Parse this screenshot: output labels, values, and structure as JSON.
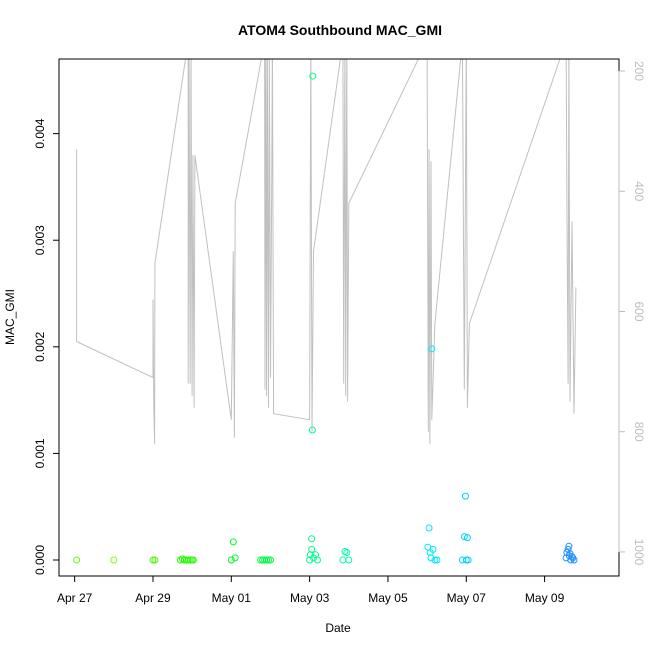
{
  "chart_data": {
    "type": "scatter",
    "title": "ATOM4 Southbound MAC_GMI",
    "xlabel": "Date",
    "ylabel": "MAC_GMI",
    "x_ticks": [
      "Apr 27",
      "Apr 29",
      "May 01",
      "May 03",
      "May 05",
      "May 07",
      "May 09"
    ],
    "xlim_days": [
      26.6,
      40.9
    ],
    "ylim": [
      -0.00015,
      0.0047
    ],
    "y_ticks": [
      "0.000",
      "0.001",
      "0.002",
      "0.003",
      "0.004"
    ],
    "right_axis": {
      "ticks": [
        "200",
        "400",
        "600",
        "800",
        "1000"
      ],
      "ylim": [
        1040,
        180
      ],
      "color": "#bdbdbd"
    },
    "grid": false,
    "points": [
      {
        "x": 27.05,
        "y": 0.0,
        "c": "#66ff00"
      },
      {
        "x": 28.0,
        "y": 0.0,
        "c": "#7dff00"
      },
      {
        "x": 29.0,
        "y": 0.0,
        "c": "#44ff00"
      },
      {
        "x": 29.05,
        "y": 0.0,
        "c": "#44ff00"
      },
      {
        "x": 29.7,
        "y": 0.0,
        "c": "#22ff00"
      },
      {
        "x": 29.75,
        "y": 1e-05,
        "c": "#22ff00"
      },
      {
        "x": 29.8,
        "y": 0.0,
        "c": "#22ff00"
      },
      {
        "x": 29.85,
        "y": 0.0,
        "c": "#22ff00"
      },
      {
        "x": 29.9,
        "y": 0.0,
        "c": "#22ff00"
      },
      {
        "x": 29.95,
        "y": 0.0,
        "c": "#22ff00"
      },
      {
        "x": 30.0,
        "y": 0.0,
        "c": "#22ff00"
      },
      {
        "x": 30.03,
        "y": 0.0,
        "c": "#22ff00"
      },
      {
        "x": 31.0,
        "y": 0.0,
        "c": "#00ff22"
      },
      {
        "x": 31.05,
        "y": 0.00017,
        "c": "#00ff22"
      },
      {
        "x": 31.1,
        "y": 2e-05,
        "c": "#00ff22"
      },
      {
        "x": 31.75,
        "y": 0.0,
        "c": "#00ff44"
      },
      {
        "x": 31.8,
        "y": 0.0,
        "c": "#00ff44"
      },
      {
        "x": 31.85,
        "y": 0.0,
        "c": "#00ff44"
      },
      {
        "x": 31.9,
        "y": 0.0,
        "c": "#00ff44"
      },
      {
        "x": 31.95,
        "y": 0.0,
        "c": "#00ff44"
      },
      {
        "x": 32.0,
        "y": 0.0,
        "c": "#00ff44"
      },
      {
        "x": 33.0,
        "y": 0.0,
        "c": "#00ff88"
      },
      {
        "x": 33.02,
        "y": 5e-05,
        "c": "#00ff88"
      },
      {
        "x": 33.05,
        "y": 0.0001,
        "c": "#00ff88"
      },
      {
        "x": 33.05,
        "y": 0.0002,
        "c": "#00ff88"
      },
      {
        "x": 33.07,
        "y": 0.00122,
        "c": "#00ff88"
      },
      {
        "x": 33.08,
        "y": 0.00454,
        "c": "#00ff88"
      },
      {
        "x": 33.1,
        "y": 2e-05,
        "c": "#00ff88"
      },
      {
        "x": 33.15,
        "y": 5e-05,
        "c": "#00ff88"
      },
      {
        "x": 33.2,
        "y": 0.0,
        "c": "#00ff88"
      },
      {
        "x": 33.85,
        "y": 0.0,
        "c": "#00ffaa"
      },
      {
        "x": 33.9,
        "y": 8e-05,
        "c": "#00ffaa"
      },
      {
        "x": 33.95,
        "y": 7e-05,
        "c": "#00ffaa"
      },
      {
        "x": 34.0,
        "y": 0.0,
        "c": "#00ffaa"
      },
      {
        "x": 36.02,
        "y": 0.00012,
        "c": "#00eaff"
      },
      {
        "x": 36.05,
        "y": 0.0003,
        "c": "#00eaff"
      },
      {
        "x": 36.08,
        "y": 7e-05,
        "c": "#00eaff"
      },
      {
        "x": 36.1,
        "y": 2e-05,
        "c": "#00eaff"
      },
      {
        "x": 36.12,
        "y": 0.00198,
        "c": "#00eaff"
      },
      {
        "x": 36.15,
        "y": 0.0001,
        "c": "#00eaff"
      },
      {
        "x": 36.2,
        "y": 0.0,
        "c": "#00eaff"
      },
      {
        "x": 36.25,
        "y": 0.0,
        "c": "#00eaff"
      },
      {
        "x": 36.9,
        "y": 0.0,
        "c": "#00d5ff"
      },
      {
        "x": 36.95,
        "y": 0.00022,
        "c": "#00d5ff"
      },
      {
        "x": 36.98,
        "y": 0.0006,
        "c": "#00d5ff"
      },
      {
        "x": 37.0,
        "y": 0.0,
        "c": "#00d5ff"
      },
      {
        "x": 37.03,
        "y": 0.00021,
        "c": "#00d5ff"
      },
      {
        "x": 37.05,
        "y": 0.0,
        "c": "#00d5ff"
      },
      {
        "x": 39.55,
        "y": 2e-05,
        "c": "#1e90ff"
      },
      {
        "x": 39.57,
        "y": 7e-05,
        "c": "#1e90ff"
      },
      {
        "x": 39.6,
        "y": 0.0001,
        "c": "#1e90ff"
      },
      {
        "x": 39.62,
        "y": 0.00013,
        "c": "#1e90ff"
      },
      {
        "x": 39.63,
        "y": 4e-05,
        "c": "#1e90ff"
      },
      {
        "x": 39.65,
        "y": 6e-05,
        "c": "#1e90ff"
      },
      {
        "x": 39.67,
        "y": 0.0,
        "c": "#1e90ff"
      },
      {
        "x": 39.7,
        "y": 3e-05,
        "c": "#1e90ff"
      },
      {
        "x": 39.72,
        "y": 2e-05,
        "c": "#1e90ff"
      },
      {
        "x": 39.75,
        "y": 0.0,
        "c": "#1e90ff"
      }
    ],
    "right_series": {
      "name": "",
      "color": "#c0c0c0",
      "points": [
        [
          27.05,
          330
        ],
        [
          27.05,
          650
        ],
        [
          29.0,
          710
        ],
        [
          29.0,
          580
        ],
        [
          29.02,
          760
        ],
        [
          29.04,
          820
        ],
        [
          29.05,
          520
        ],
        [
          29.9,
          150
        ],
        [
          29.9,
          720
        ],
        [
          29.92,
          150
        ],
        [
          29.95,
          720
        ],
        [
          29.97,
          150
        ],
        [
          30.0,
          740
        ],
        [
          30.02,
          340
        ],
        [
          30.05,
          760
        ],
        [
          30.07,
          340
        ],
        [
          31.0,
          780
        ],
        [
          31.05,
          500
        ],
        [
          31.08,
          810
        ],
        [
          31.1,
          420
        ],
        [
          31.85,
          150
        ],
        [
          31.86,
          730
        ],
        [
          31.88,
          150
        ],
        [
          31.9,
          740
        ],
        [
          31.92,
          150
        ],
        [
          31.95,
          760
        ],
        [
          31.97,
          150
        ],
        [
          32.0,
          710
        ],
        [
          32.03,
          420
        ],
        [
          32.05,
          150
        ],
        [
          32.08,
          770
        ],
        [
          33.0,
          780
        ],
        [
          33.03,
          150
        ],
        [
          33.06,
          800
        ],
        [
          33.1,
          500
        ],
        [
          33.85,
          150
        ],
        [
          33.87,
          720
        ],
        [
          33.9,
          150
        ],
        [
          33.92,
          740
        ],
        [
          33.95,
          150
        ],
        [
          33.97,
          750
        ],
        [
          34.0,
          420
        ],
        [
          36.0,
          150
        ],
        [
          36.03,
          800
        ],
        [
          36.05,
          330
        ],
        [
          36.07,
          820
        ],
        [
          36.1,
          350
        ],
        [
          36.12,
          780
        ],
        [
          36.2,
          620
        ],
        [
          36.9,
          150
        ],
        [
          36.95,
          730
        ],
        [
          37.0,
          150
        ],
        [
          37.03,
          760
        ],
        [
          37.08,
          620
        ],
        [
          39.55,
          150
        ],
        [
          39.57,
          420
        ],
        [
          39.6,
          720
        ],
        [
          39.62,
          150
        ],
        [
          39.65,
          750
        ],
        [
          39.7,
          450
        ],
        [
          39.75,
          770
        ],
        [
          39.8,
          560
        ]
      ]
    }
  }
}
